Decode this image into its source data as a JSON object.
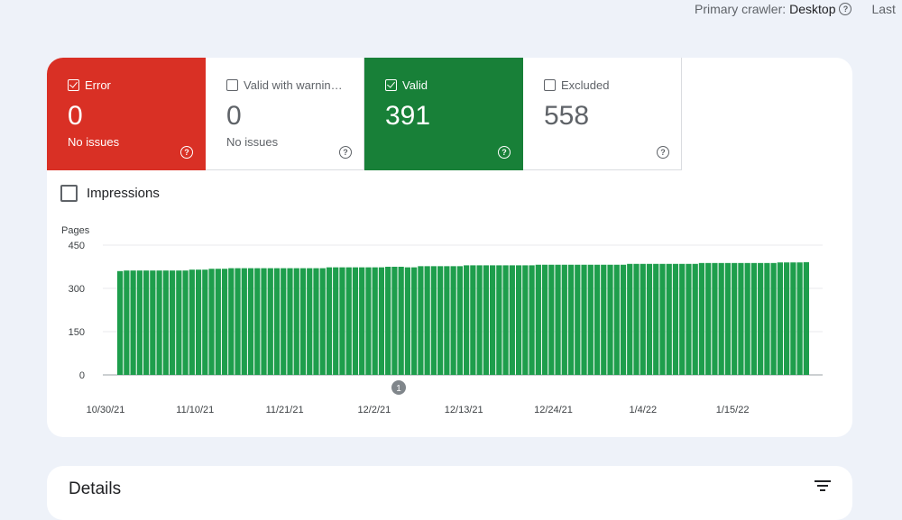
{
  "topbar": {
    "crawler_label": "Primary crawler:",
    "crawler_value": "Desktop",
    "last_label": "Last"
  },
  "tiles": [
    {
      "label": "Error",
      "value": "0",
      "sub": "No issues",
      "checked": true
    },
    {
      "label": "Valid with warnin…",
      "value": "0",
      "sub": "No issues",
      "checked": false
    },
    {
      "label": "Valid",
      "value": "391",
      "sub": "",
      "checked": true
    },
    {
      "label": "Excluded",
      "value": "558",
      "sub": "",
      "checked": false
    }
  ],
  "impressions_label": "Impressions",
  "details_title": "Details",
  "colors": {
    "error": "#d93025",
    "valid": "#188038",
    "bar": "#1e9e4c"
  },
  "chart_data": {
    "type": "bar",
    "ylabel": "Pages",
    "ylim": [
      0,
      450
    ],
    "yticks": [
      0,
      150,
      300,
      450
    ],
    "xticks": [
      "10/30/21",
      "11/10/21",
      "11/21/21",
      "12/2/21",
      "12/13/21",
      "12/24/21",
      "1/4/22",
      "1/15/22"
    ],
    "annotation": "1",
    "values": [
      360,
      362,
      362,
      362,
      362,
      362,
      362,
      362,
      362,
      362,
      362,
      365,
      365,
      365,
      368,
      368,
      368,
      370,
      370,
      370,
      370,
      370,
      370,
      370,
      370,
      370,
      370,
      370,
      370,
      370,
      370,
      370,
      373,
      373,
      373,
      373,
      373,
      373,
      373,
      373,
      373,
      375,
      375,
      375,
      373,
      373,
      377,
      377,
      377,
      377,
      377,
      377,
      377,
      380,
      380,
      380,
      380,
      380,
      380,
      380,
      380,
      380,
      380,
      380,
      382,
      382,
      382,
      382,
      382,
      382,
      382,
      382,
      382,
      382,
      382,
      382,
      382,
      382,
      385,
      385,
      385,
      385,
      385,
      385,
      385,
      385,
      385,
      385,
      385,
      388,
      388,
      388,
      388,
      388,
      388,
      388,
      388,
      388,
      388,
      388,
      388,
      390,
      390,
      390,
      390,
      391
    ]
  }
}
